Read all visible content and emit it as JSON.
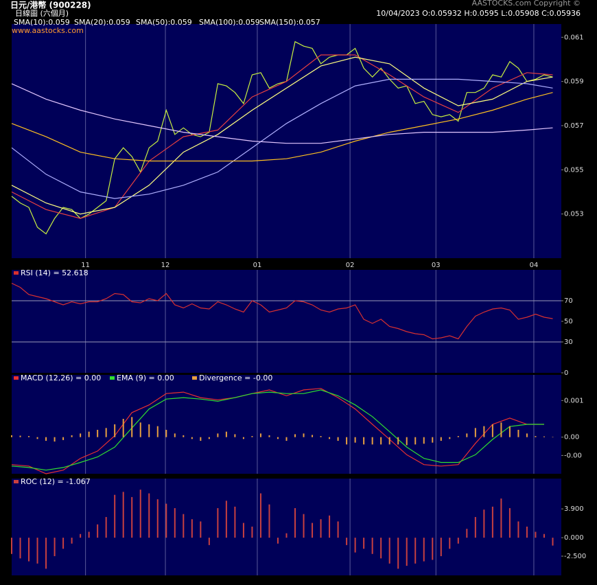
{
  "header": {
    "title": "日元/港幣  (900228)",
    "subtitle": "日線圖 (六個月)",
    "quote": "10/04/2023   O:0.05932  H:0.0595  L:0.05908  C:0.05936",
    "copyright": "AASTOCKS.com Copyright ©",
    "website": "www.aastocks.com"
  },
  "chart_data": [
    {
      "type": "line",
      "xlim": [
        0,
        64
      ],
      "ylim": [
        0.051,
        0.0616
      ],
      "xticks": [
        {
          "value": 8.6,
          "label": "11"
        },
        {
          "value": 17.9,
          "label": "12"
        },
        {
          "value": 28.6,
          "label": "01"
        },
        {
          "value": 39.4,
          "label": "02"
        },
        {
          "value": 49.4,
          "label": "03"
        },
        {
          "value": 60.8,
          "label": "04"
        }
      ],
      "yticks": [
        0.053,
        0.055,
        0.057,
        0.059,
        0.061
      ],
      "x": [
        0,
        1,
        2,
        3,
        4,
        5,
        6,
        7,
        8,
        9,
        10,
        11,
        12,
        13,
        14,
        15,
        16,
        17,
        18,
        19,
        20,
        21,
        22,
        23,
        24,
        25,
        26,
        27,
        28,
        29,
        30,
        31,
        32,
        33,
        34,
        35,
        36,
        37,
        38,
        39,
        40,
        41,
        42,
        43,
        44,
        45,
        46,
        47,
        48,
        49,
        50,
        51,
        52,
        53,
        54,
        55,
        56,
        57,
        58,
        59,
        60,
        61,
        62,
        63
      ],
      "series": [
        {
          "color": "#c8f040",
          "values": [
            0.0538,
            0.0535,
            0.0533,
            0.0524,
            0.0521,
            0.0528,
            0.0533,
            0.0532,
            0.0528,
            0.053,
            0.0533,
            0.0536,
            0.0555,
            0.056,
            0.0556,
            0.0549,
            0.056,
            0.0563,
            0.0577,
            0.0566,
            0.0569,
            0.0566,
            0.0565,
            0.0567,
            0.0589,
            0.0588,
            0.0585,
            0.058,
            0.0593,
            0.0594,
            0.0587,
            0.0589,
            0.059,
            0.0608,
            0.0606,
            0.0605,
            0.0598,
            0.0601,
            0.0602,
            0.0602,
            0.0605,
            0.0596,
            0.0592,
            0.0596,
            0.0591,
            0.0587,
            0.0588,
            0.058,
            0.0581,
            0.0575,
            0.0574,
            0.0575,
            0.0572,
            0.0585,
            0.0585,
            0.0587,
            0.0593,
            0.0592,
            0.0599,
            0.0596,
            0.059,
            0.0591,
            0.0593,
            0.0592
          ]
        },
        {
          "name": "SMA(10):0.059",
          "color": "#e84040",
          "x": [
            0,
            4,
            8,
            12,
            16,
            20,
            24,
            28,
            32,
            36,
            40,
            44,
            48,
            52,
            56,
            60,
            63
          ],
          "values": [
            0.054,
            0.0532,
            0.0528,
            0.0533,
            0.0554,
            0.0565,
            0.0568,
            0.0583,
            0.059,
            0.0602,
            0.0602,
            0.0593,
            0.0583,
            0.0576,
            0.0587,
            0.0594,
            0.0593
          ]
        },
        {
          "name": "SMA(20):0.059",
          "color": "#ffff80",
          "x": [
            0,
            4,
            8,
            12,
            16,
            20,
            24,
            28,
            32,
            36,
            40,
            44,
            48,
            52,
            56,
            60,
            63
          ],
          "values": [
            0.0543,
            0.0535,
            0.053,
            0.0533,
            0.0543,
            0.0558,
            0.0566,
            0.0577,
            0.0587,
            0.0597,
            0.0601,
            0.0598,
            0.0587,
            0.0579,
            0.0582,
            0.059,
            0.0592
          ]
        },
        {
          "name": "SMA(50):0.059",
          "color": "#b0b0ff",
          "x": [
            0,
            4,
            8,
            12,
            16,
            20,
            24,
            28,
            32,
            36,
            40,
            44,
            48,
            52,
            56,
            60,
            63
          ],
          "values": [
            0.056,
            0.0548,
            0.054,
            0.0537,
            0.0539,
            0.0543,
            0.0549,
            0.056,
            0.0571,
            0.058,
            0.0588,
            0.0591,
            0.0591,
            0.0591,
            0.059,
            0.0589,
            0.0587
          ]
        },
        {
          "name": "SMA(100):0.059",
          "color": "#ffc020",
          "x": [
            0,
            4,
            8,
            12,
            16,
            20,
            24,
            28,
            32,
            36,
            40,
            44,
            48,
            52,
            56,
            60,
            63
          ],
          "values": [
            0.0571,
            0.0565,
            0.0558,
            0.0555,
            0.0554,
            0.0554,
            0.0554,
            0.0554,
            0.0555,
            0.0558,
            0.0563,
            0.0567,
            0.057,
            0.0573,
            0.0577,
            0.0582,
            0.0585
          ]
        },
        {
          "name": "SMA(150):0.057",
          "color": "#e4c8ff",
          "x": [
            0,
            4,
            8,
            12,
            16,
            20,
            24,
            28,
            32,
            36,
            40,
            44,
            48,
            52,
            56,
            60,
            63
          ],
          "values": [
            0.0589,
            0.0582,
            0.0577,
            0.0573,
            0.057,
            0.0567,
            0.0565,
            0.0563,
            0.0562,
            0.0562,
            0.0564,
            0.0566,
            0.0567,
            0.0567,
            0.0567,
            0.0568,
            0.0569
          ]
        }
      ]
    },
    {
      "type": "line",
      "xlim": [
        0,
        64
      ],
      "ylim": [
        0,
        100
      ],
      "yticks": [
        0,
        30,
        50,
        70
      ],
      "guides": [
        30,
        70
      ],
      "x": [
        0,
        1,
        2,
        3,
        4,
        5,
        6,
        7,
        8,
        9,
        10,
        11,
        12,
        13,
        14,
        15,
        16,
        17,
        18,
        19,
        20,
        21,
        22,
        23,
        24,
        25,
        26,
        27,
        28,
        29,
        30,
        31,
        32,
        33,
        34,
        35,
        36,
        37,
        38,
        39,
        40,
        41,
        42,
        43,
        44,
        45,
        46,
        47,
        48,
        49,
        50,
        51,
        52,
        53,
        54,
        55,
        56,
        57,
        58,
        59,
        60,
        61,
        62,
        63
      ],
      "series": [
        {
          "name": "RSI (14)  = 52.618",
          "color": "#d83030",
          "values": [
            87,
            83,
            76,
            74,
            72,
            69,
            66,
            69,
            67,
            69,
            69,
            72,
            77,
            76,
            69,
            68,
            72,
            70,
            77,
            66,
            63,
            67,
            63,
            62,
            69,
            66,
            62,
            59,
            70,
            66,
            59,
            61,
            63,
            70,
            69,
            66,
            61,
            59,
            62,
            63,
            66,
            52,
            48,
            52,
            45,
            43,
            40,
            38,
            37,
            33,
            34,
            36,
            33,
            45,
            55,
            59,
            62,
            63,
            61,
            52,
            54,
            57,
            54,
            52.6
          ]
        }
      ]
    },
    {
      "type": "line",
      "xlim": [
        0,
        64
      ],
      "ylim": [
        -0.001,
        0.0017
      ],
      "yticks": [
        {
          "value": -0.0005,
          "label": "-0.00"
        },
        {
          "value": 0,
          "label": "0.00"
        },
        0.001
      ],
      "x": [
        0,
        1,
        2,
        3,
        4,
        5,
        6,
        7,
        8,
        9,
        10,
        11,
        12,
        13,
        14,
        15,
        16,
        17,
        18,
        19,
        20,
        21,
        22,
        23,
        24,
        25,
        26,
        27,
        28,
        29,
        30,
        31,
        32,
        33,
        34,
        35,
        36,
        37,
        38,
        39,
        40,
        41,
        42,
        43,
        44,
        45,
        46,
        47,
        48,
        49,
        50,
        51,
        52,
        53,
        54,
        55,
        56,
        57,
        58,
        59,
        60,
        61,
        62,
        63
      ],
      "series": [
        {
          "name": "MACD (12,26) = 0.00",
          "color": "#e83030",
          "x": [
            0,
            2,
            4,
            6,
            8,
            10,
            12,
            14,
            16,
            18,
            20,
            22,
            24,
            26,
            28,
            30,
            32,
            34,
            36,
            38,
            40,
            42,
            44,
            46,
            48,
            50,
            52,
            54,
            56,
            58,
            60,
            62
          ],
          "values": [
            -0.00075,
            -0.00079,
            -0.001,
            -0.0009,
            -0.00058,
            -0.00038,
            4e-05,
            0.00067,
            0.00088,
            0.00119,
            0.00123,
            0.00108,
            0.00102,
            0.00108,
            0.00119,
            0.00129,
            0.00113,
            0.00129,
            0.00133,
            0.00108,
            0.00077,
            0.00035,
            -6e-05,
            -0.00048,
            -0.00075,
            -0.00079,
            -0.00075,
            -0.00017,
            0.00035,
            0.00052,
            0.00035,
            0.00035
          ]
        },
        {
          "name": "EMA (9) = 0.00",
          "color": "#30e030",
          "x": [
            0,
            2,
            4,
            6,
            8,
            10,
            12,
            14,
            16,
            18,
            20,
            22,
            24,
            26,
            28,
            30,
            32,
            34,
            36,
            38,
            40,
            42,
            44,
            46,
            48,
            50,
            52,
            54,
            56,
            58,
            60,
            62
          ],
          "values": [
            -0.00079,
            -0.00083,
            -0.0009,
            -0.00083,
            -0.00069,
            -0.00054,
            -0.00027,
            0.00025,
            0.00077,
            0.00104,
            0.00108,
            0.00104,
            0.00098,
            0.00108,
            0.00119,
            0.00123,
            0.00119,
            0.00119,
            0.00129,
            0.00113,
            0.00088,
            0.00056,
            0.00015,
            -0.00027,
            -0.00058,
            -0.00069,
            -0.00069,
            -0.00048,
            -6e-05,
            0.00029,
            0.00035,
            0.00035
          ]
        },
        {
          "name": "Divergence = -0.00",
          "color": "#e8a040",
          "type": "bar",
          "values": [
            5e-05,
            4e-05,
            3e-05,
            -5e-05,
            -0.0001,
            -0.00012,
            -8e-05,
            5e-05,
            0.0001,
            0.00015,
            0.0002,
            0.00025,
            0.00035,
            0.0005,
            0.00055,
            0.0004,
            0.00035,
            0.0003,
            0.0002,
            0.0001,
            5e-05,
            -5e-05,
            -0.0001,
            -5e-05,
            0.0001,
            0.00015,
            8e-05,
            -5e-05,
            3e-05,
            0.0001,
            5e-05,
            -5e-05,
            -0.0001,
            8e-05,
            0.0001,
            6e-05,
            3e-05,
            -5e-05,
            -0.0001,
            -0.0002,
            -0.00015,
            -0.0002,
            -0.0002,
            -0.0002,
            -0.0002,
            -0.0002,
            -0.00022,
            -0.0002,
            -0.00018,
            -0.00015,
            -0.0001,
            -5e-05,
            3e-05,
            0.0001,
            0.00025,
            0.0003,
            0.00035,
            0.0004,
            0.0003,
            0.0002,
            0.0001,
            3e-05,
            2e-05,
            1e-05
          ]
        }
      ]
    },
    {
      "type": "bar",
      "xlim": [
        0,
        64
      ],
      "ylim": [
        -5.1,
        8
      ],
      "yticks": [
        {
          "value": -2.5,
          "label": "-2.500"
        },
        {
          "value": 0,
          "label": "0.000"
        },
        {
          "value": 3.9,
          "label": "3.900"
        }
      ],
      "x": [
        0,
        1,
        2,
        3,
        4,
        5,
        6,
        7,
        8,
        9,
        10,
        11,
        12,
        13,
        14,
        15,
        16,
        17,
        18,
        19,
        20,
        21,
        22,
        23,
        24,
        25,
        26,
        27,
        28,
        29,
        30,
        31,
        32,
        33,
        34,
        35,
        36,
        37,
        38,
        39,
        40,
        41,
        42,
        43,
        44,
        45,
        46,
        47,
        48,
        49,
        50,
        51,
        52,
        53,
        54,
        55,
        56,
        57,
        58,
        59,
        60,
        61,
        62,
        63
      ],
      "series": [
        {
          "name": "ROC (12)  = -1.067",
          "color": "#c84040",
          "values": [
            -2.2,
            -2.8,
            -3.2,
            -3.5,
            -4.2,
            -2.5,
            -1.5,
            -0.8,
            0.5,
            0.8,
            1.8,
            2.8,
            5.8,
            6.2,
            5.5,
            6.5,
            6.0,
            5.2,
            4.6,
            4.0,
            3.2,
            2.5,
            2.2,
            -1.0,
            4.0,
            5.0,
            4.2,
            2.0,
            1.5,
            6.0,
            4.5,
            -0.8,
            0.6,
            4.0,
            3.2,
            2.0,
            2.5,
            3.0,
            2.2,
            -1.0,
            -2.0,
            -1.5,
            -2.2,
            -2.8,
            -3.5,
            -4.2,
            -3.8,
            -3.5,
            -3.2,
            -3.0,
            -2.5,
            -1.5,
            -0.8,
            1.2,
            2.8,
            3.8,
            4.2,
            5.3,
            4.0,
            2.2,
            1.5,
            0.8,
            0.5,
            -1.067
          ]
        }
      ]
    }
  ]
}
